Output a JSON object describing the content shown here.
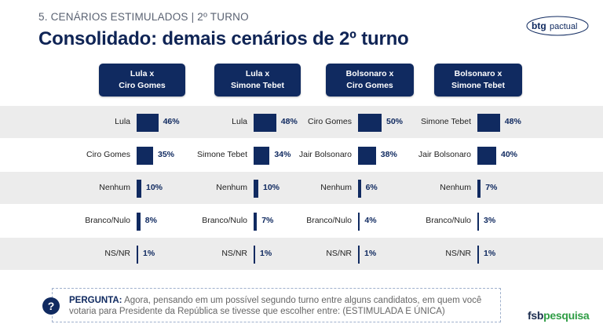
{
  "header": {
    "kicker": "5. CENÁRIOS ESTIMULADOS | 2º TURNO",
    "title": "Consolidado: demais cenários de 2º turno",
    "logo_text": "btg pactual",
    "logo_bold": "btg",
    "logo_light": "pactual"
  },
  "chart_data": [
    {
      "type": "bar",
      "orientation": "horizontal",
      "title": "Lula x\nCiro Gomes",
      "title_lines": [
        "Lula x",
        "Ciro Gomes"
      ],
      "categories": [
        "Lula",
        "Ciro Gomes",
        "Nenhum",
        "Branco/Nulo",
        "NS/NR"
      ],
      "values": [
        46,
        35,
        10,
        8,
        1
      ],
      "value_labels": [
        "46%",
        "35%",
        "10%",
        "8%",
        "1%"
      ],
      "unit": "%",
      "bar_color": "#102a60"
    },
    {
      "type": "bar",
      "orientation": "horizontal",
      "title": "Lula x\nSimone Tebet",
      "title_lines": [
        "Lula x",
        "Simone Tebet"
      ],
      "categories": [
        "Lula",
        "Simone Tebet",
        "Nenhum",
        "Branco/Nulo",
        "NS/NR"
      ],
      "values": [
        48,
        34,
        10,
        7,
        1
      ],
      "value_labels": [
        "48%",
        "34%",
        "10%",
        "7%",
        "1%"
      ],
      "unit": "%",
      "bar_color": "#102a60"
    },
    {
      "type": "bar",
      "orientation": "horizontal",
      "title": "Bolsonaro x\nCiro Gomes",
      "title_lines": [
        "Bolsonaro x",
        "Ciro Gomes"
      ],
      "categories": [
        "Ciro Gomes",
        "Jair Bolsonaro",
        "Nenhum",
        "Branco/Nulo",
        "NS/NR"
      ],
      "values": [
        50,
        38,
        6,
        4,
        1
      ],
      "value_labels": [
        "50%",
        "38%",
        "6%",
        "4%",
        "1%"
      ],
      "unit": "%",
      "bar_color": "#102a60"
    },
    {
      "type": "bar",
      "orientation": "horizontal",
      "title": "Bolsonaro x\nSimone Tebet",
      "title_lines": [
        "Bolsonaro x",
        "Simone Tebet"
      ],
      "categories": [
        "Simone Tebet",
        "Jair Bolsonaro",
        "Nenhum",
        "Branco/Nulo",
        "NS/NR"
      ],
      "values": [
        48,
        40,
        7,
        3,
        1
      ],
      "value_labels": [
        "48%",
        "40%",
        "7%",
        "3%",
        "1%"
      ],
      "unit": "%",
      "bar_color": "#102a60"
    }
  ],
  "question": {
    "icon": "?",
    "label": "PERGUNTA:",
    "text": " Agora, pensando em um possível segundo turno entre alguns candidatos, em quem você votaria para Presidente da República se tivesse que escolher entre: (ESTIMULADA E ÚNICA)"
  },
  "footer": {
    "brand_part1": "fsb",
    "brand_part2": "pesquisa"
  }
}
